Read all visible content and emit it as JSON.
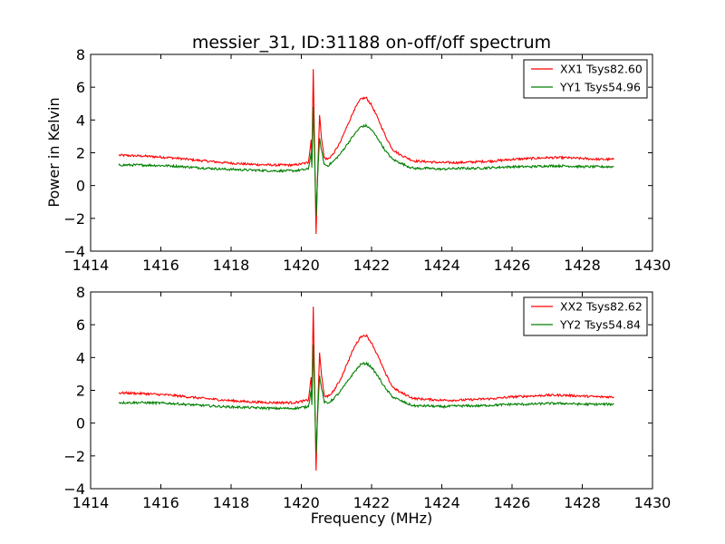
{
  "figure": {
    "title": "messier_31, ID:31188 on-off/off spectrum",
    "xlabel": "Frequency (MHz)",
    "ylabel": "Power in Kelvin"
  },
  "chart_data": [
    {
      "type": "line",
      "xlim": [
        1414,
        1430
      ],
      "ylim": [
        -4,
        8
      ],
      "xticks": [
        1414,
        1416,
        1418,
        1420,
        1422,
        1424,
        1426,
        1428,
        1430
      ],
      "yticks": [
        -4,
        -2,
        0,
        2,
        4,
        6,
        8
      ],
      "legend": "top-right",
      "grid": false,
      "series": [
        {
          "name": "XX1 Tsys82.60",
          "color": "#ff0000",
          "points": [
            [
              1414.8,
              1.85
            ],
            [
              1415.5,
              1.8
            ],
            [
              1416.3,
              1.7
            ],
            [
              1417.0,
              1.55
            ],
            [
              1417.8,
              1.4
            ],
            [
              1418.5,
              1.3
            ],
            [
              1419.2,
              1.25
            ],
            [
              1419.8,
              1.25
            ],
            [
              1420.2,
              1.4
            ],
            [
              1420.28,
              2.8
            ],
            [
              1420.3,
              1.5
            ],
            [
              1420.34,
              7.1
            ],
            [
              1420.38,
              2.2
            ],
            [
              1420.42,
              -2.95
            ],
            [
              1420.46,
              0.5
            ],
            [
              1420.52,
              4.3
            ],
            [
              1420.57,
              3.0
            ],
            [
              1420.65,
              1.7
            ],
            [
              1420.75,
              1.6
            ],
            [
              1420.9,
              1.9
            ],
            [
              1421.1,
              2.6
            ],
            [
              1421.3,
              3.6
            ],
            [
              1421.5,
              4.6
            ],
            [
              1421.7,
              5.3
            ],
            [
              1421.85,
              5.35
            ],
            [
              1422.0,
              4.9
            ],
            [
              1422.2,
              4.0
            ],
            [
              1422.4,
              3.0
            ],
            [
              1422.6,
              2.2
            ],
            [
              1422.8,
              1.9
            ],
            [
              1423.0,
              1.7
            ],
            [
              1423.2,
              1.5
            ],
            [
              1423.6,
              1.45
            ],
            [
              1424.0,
              1.4
            ],
            [
              1424.5,
              1.4
            ],
            [
              1425.0,
              1.45
            ],
            [
              1425.5,
              1.5
            ],
            [
              1426.0,
              1.6
            ],
            [
              1426.5,
              1.65
            ],
            [
              1427.0,
              1.7
            ],
            [
              1427.5,
              1.7
            ],
            [
              1428.0,
              1.65
            ],
            [
              1428.5,
              1.6
            ],
            [
              1428.9,
              1.6
            ]
          ]
        },
        {
          "name": "YY1 Tsys54.96",
          "color": "#008000",
          "points": [
            [
              1414.8,
              1.25
            ],
            [
              1415.5,
              1.25
            ],
            [
              1416.3,
              1.2
            ],
            [
              1417.0,
              1.1
            ],
            [
              1417.8,
              1.0
            ],
            [
              1418.5,
              0.95
            ],
            [
              1419.2,
              0.9
            ],
            [
              1419.8,
              0.9
            ],
            [
              1420.2,
              1.0
            ],
            [
              1420.28,
              2.0
            ],
            [
              1420.3,
              1.1
            ],
            [
              1420.34,
              4.8
            ],
            [
              1420.38,
              1.6
            ],
            [
              1420.42,
              -1.85
            ],
            [
              1420.46,
              0.3
            ],
            [
              1420.52,
              2.9
            ],
            [
              1420.57,
              2.2
            ],
            [
              1420.65,
              1.3
            ],
            [
              1420.75,
              1.2
            ],
            [
              1420.9,
              1.45
            ],
            [
              1421.1,
              1.9
            ],
            [
              1421.3,
              2.5
            ],
            [
              1421.5,
              3.1
            ],
            [
              1421.7,
              3.6
            ],
            [
              1421.85,
              3.65
            ],
            [
              1422.0,
              3.4
            ],
            [
              1422.2,
              2.8
            ],
            [
              1422.4,
              2.1
            ],
            [
              1422.6,
              1.6
            ],
            [
              1422.8,
              1.4
            ],
            [
              1423.0,
              1.2
            ],
            [
              1423.2,
              1.05
            ],
            [
              1423.6,
              1.05
            ],
            [
              1424.0,
              1.0
            ],
            [
              1424.5,
              1.05
            ],
            [
              1425.0,
              1.05
            ],
            [
              1425.5,
              1.1
            ],
            [
              1426.0,
              1.15
            ],
            [
              1426.5,
              1.15
            ],
            [
              1427.0,
              1.2
            ],
            [
              1427.5,
              1.2
            ],
            [
              1428.0,
              1.15
            ],
            [
              1428.5,
              1.15
            ],
            [
              1428.9,
              1.15
            ]
          ]
        }
      ]
    },
    {
      "type": "line",
      "xlim": [
        1414,
        1430
      ],
      "ylim": [
        -4,
        8
      ],
      "xticks": [
        1414,
        1416,
        1418,
        1420,
        1422,
        1424,
        1426,
        1428,
        1430
      ],
      "yticks": [
        -4,
        -2,
        0,
        2,
        4,
        6,
        8
      ],
      "legend": "top-right",
      "grid": false,
      "series": [
        {
          "name": "XX2 Tsys82.62",
          "color": "#ff0000",
          "points": [
            [
              1414.8,
              1.85
            ],
            [
              1415.5,
              1.8
            ],
            [
              1416.3,
              1.7
            ],
            [
              1417.0,
              1.55
            ],
            [
              1417.8,
              1.4
            ],
            [
              1418.5,
              1.3
            ],
            [
              1419.2,
              1.25
            ],
            [
              1419.8,
              1.25
            ],
            [
              1420.2,
              1.4
            ],
            [
              1420.28,
              2.8
            ],
            [
              1420.3,
              1.5
            ],
            [
              1420.34,
              7.1
            ],
            [
              1420.38,
              2.2
            ],
            [
              1420.42,
              -2.9
            ],
            [
              1420.46,
              0.5
            ],
            [
              1420.52,
              4.3
            ],
            [
              1420.57,
              3.0
            ],
            [
              1420.65,
              1.7
            ],
            [
              1420.75,
              1.6
            ],
            [
              1420.9,
              1.9
            ],
            [
              1421.1,
              2.6
            ],
            [
              1421.3,
              3.6
            ],
            [
              1421.5,
              4.6
            ],
            [
              1421.7,
              5.3
            ],
            [
              1421.85,
              5.35
            ],
            [
              1422.0,
              4.9
            ],
            [
              1422.2,
              4.0
            ],
            [
              1422.4,
              3.0
            ],
            [
              1422.6,
              2.2
            ],
            [
              1422.8,
              1.9
            ],
            [
              1423.0,
              1.7
            ],
            [
              1423.2,
              1.5
            ],
            [
              1423.6,
              1.45
            ],
            [
              1424.0,
              1.4
            ],
            [
              1424.5,
              1.4
            ],
            [
              1425.0,
              1.45
            ],
            [
              1425.5,
              1.5
            ],
            [
              1426.0,
              1.6
            ],
            [
              1426.5,
              1.65
            ],
            [
              1427.0,
              1.7
            ],
            [
              1427.5,
              1.7
            ],
            [
              1428.0,
              1.65
            ],
            [
              1428.5,
              1.6
            ],
            [
              1428.9,
              1.6
            ]
          ]
        },
        {
          "name": "YY2 Tsys54.84",
          "color": "#008000",
          "points": [
            [
              1414.8,
              1.25
            ],
            [
              1415.5,
              1.25
            ],
            [
              1416.3,
              1.2
            ],
            [
              1417.0,
              1.1
            ],
            [
              1417.8,
              1.0
            ],
            [
              1418.5,
              0.95
            ],
            [
              1419.2,
              0.9
            ],
            [
              1419.8,
              0.9
            ],
            [
              1420.2,
              1.0
            ],
            [
              1420.28,
              2.0
            ],
            [
              1420.3,
              1.1
            ],
            [
              1420.34,
              4.8
            ],
            [
              1420.38,
              1.6
            ],
            [
              1420.42,
              -1.85
            ],
            [
              1420.46,
              0.3
            ],
            [
              1420.52,
              2.9
            ],
            [
              1420.57,
              2.2
            ],
            [
              1420.65,
              1.3
            ],
            [
              1420.75,
              1.2
            ],
            [
              1420.9,
              1.45
            ],
            [
              1421.1,
              1.9
            ],
            [
              1421.3,
              2.5
            ],
            [
              1421.5,
              3.1
            ],
            [
              1421.7,
              3.6
            ],
            [
              1421.85,
              3.65
            ],
            [
              1422.0,
              3.4
            ],
            [
              1422.2,
              2.8
            ],
            [
              1422.4,
              2.1
            ],
            [
              1422.6,
              1.6
            ],
            [
              1422.8,
              1.4
            ],
            [
              1423.0,
              1.2
            ],
            [
              1423.2,
              1.05
            ],
            [
              1423.6,
              1.05
            ],
            [
              1424.0,
              1.0
            ],
            [
              1424.5,
              1.05
            ],
            [
              1425.0,
              1.05
            ],
            [
              1425.5,
              1.1
            ],
            [
              1426.0,
              1.15
            ],
            [
              1426.5,
              1.15
            ],
            [
              1427.0,
              1.2
            ],
            [
              1427.5,
              1.2
            ],
            [
              1428.0,
              1.15
            ],
            [
              1428.5,
              1.15
            ],
            [
              1428.9,
              1.15
            ]
          ]
        }
      ]
    }
  ]
}
